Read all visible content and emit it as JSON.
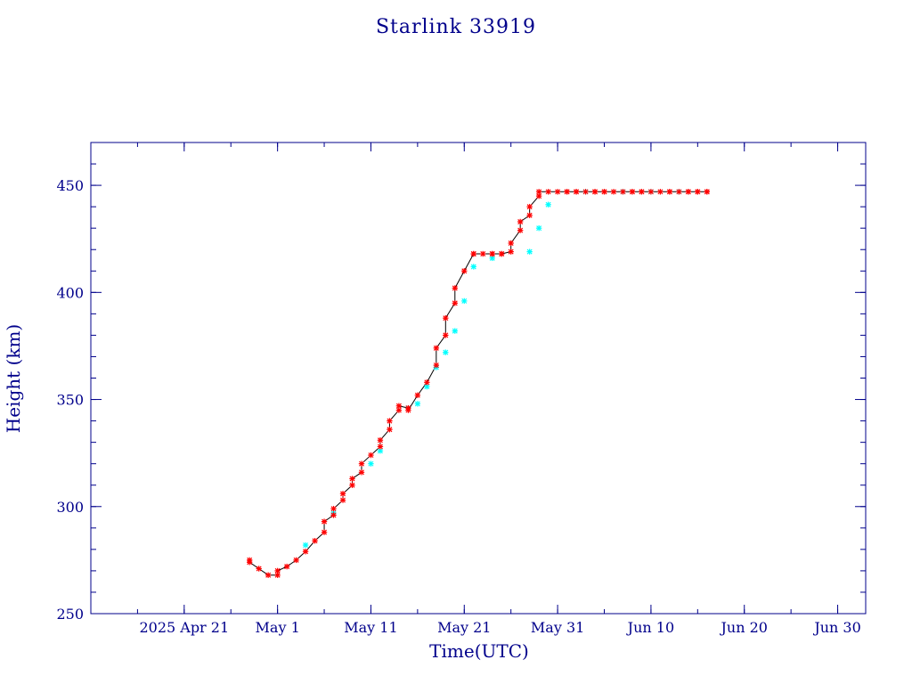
{
  "colors": {
    "axis": "#00008b",
    "line": "#000000",
    "marker_red": "#ff0000",
    "marker_cyan": "#00ffff",
    "background": "#ffffff"
  },
  "chart_data": {
    "type": "line",
    "title": "Starlink 33919",
    "xlabel": "Time(UTC)",
    "ylabel": "Height (km)",
    "x_unit": "days",
    "xlim": [
      "2025-04-11",
      "2025-07-03"
    ],
    "ylim": [
      250,
      470
    ],
    "grid": false,
    "x_tick_labels": [
      {
        "date": "2025-04-21",
        "label": "2025 Apr 21"
      },
      {
        "date": "2025-05-01",
        "label": "May  1"
      },
      {
        "date": "2025-05-11",
        "label": "May 11"
      },
      {
        "date": "2025-05-21",
        "label": "May 21"
      },
      {
        "date": "2025-05-31",
        "label": "May 31"
      },
      {
        "date": "2025-06-10",
        "label": "Jun 10"
      },
      {
        "date": "2025-06-20",
        "label": "Jun 20"
      },
      {
        "date": "2025-06-30",
        "label": "Jun 30"
      }
    ],
    "y_tick_labels": [
      "250",
      "300",
      "350",
      "400",
      "450"
    ],
    "y_tick_values": [
      250,
      300,
      350,
      400,
      450
    ],
    "series": [
      {
        "marker": "red-star",
        "x": [
          "2025-04-28",
          "2025-04-28",
          "2025-04-29",
          "2025-04-30",
          "2025-05-01",
          "2025-05-01",
          "2025-05-02",
          "2025-05-03",
          "2025-05-04",
          "2025-05-05",
          "2025-05-06",
          "2025-05-06",
          "2025-05-07",
          "2025-05-07",
          "2025-05-08",
          "2025-05-08",
          "2025-05-09",
          "2025-05-09",
          "2025-05-10",
          "2025-05-10",
          "2025-05-11",
          "2025-05-12",
          "2025-05-12",
          "2025-05-13",
          "2025-05-13",
          "2025-05-14",
          "2025-05-14",
          "2025-05-15",
          "2025-05-15",
          "2025-05-16",
          "2025-05-17",
          "2025-05-18",
          "2025-05-18",
          "2025-05-19",
          "2025-05-19",
          "2025-05-20",
          "2025-05-20",
          "2025-05-21",
          "2025-05-22",
          "2025-05-22",
          "2025-05-23",
          "2025-05-24",
          "2025-05-24",
          "2025-05-25",
          "2025-05-25",
          "2025-05-26",
          "2025-05-26",
          "2025-05-27",
          "2025-05-27",
          "2025-05-28",
          "2025-05-28",
          "2025-05-29",
          "2025-05-29",
          "2025-05-30",
          "2025-05-31",
          "2025-06-01",
          "2025-06-01",
          "2025-06-02",
          "2025-06-02",
          "2025-06-03",
          "2025-06-04",
          "2025-06-04",
          "2025-06-05",
          "2025-06-05",
          "2025-06-06",
          "2025-06-07",
          "2025-06-08",
          "2025-06-08",
          "2025-06-09",
          "2025-06-09",
          "2025-06-10",
          "2025-06-11",
          "2025-06-12",
          "2025-06-12",
          "2025-06-13",
          "2025-06-14",
          "2025-06-14",
          "2025-06-15",
          "2025-06-15",
          "2025-06-16",
          "2025-06-16"
        ],
        "y": [
          275,
          274,
          271,
          268,
          268,
          270,
          272,
          275,
          279,
          284,
          288,
          293,
          296,
          299,
          303,
          306,
          310,
          313,
          316,
          320,
          324,
          328,
          331,
          336,
          340,
          345,
          347,
          346,
          345,
          352,
          358,
          366,
          374,
          380,
          388,
          395,
          402,
          410,
          418,
          418,
          418,
          418,
          418,
          418,
          418,
          419,
          423,
          429,
          433,
          436,
          440,
          445,
          447,
          447,
          447,
          447,
          447,
          447,
          447,
          447,
          447,
          447,
          447,
          447,
          447,
          447,
          447,
          447,
          447,
          447,
          447,
          447,
          447,
          447,
          447,
          447,
          447,
          447,
          447,
          447,
          447
        ]
      },
      {
        "marker": "cyan-star",
        "x": [
          "2025-05-04",
          "2025-05-07",
          "2025-05-11",
          "2025-05-12",
          "2025-05-15",
          "2025-05-16",
          "2025-05-17",
          "2025-05-18",
          "2025-05-19",
          "2025-05-20",
          "2025-05-21",
          "2025-05-22",
          "2025-05-24",
          "2025-05-28",
          "2025-05-29",
          "2025-05-30",
          "2025-06-03",
          "2025-06-07",
          "2025-06-10",
          "2025-06-13"
        ],
        "y": [
          282,
          297,
          320,
          326,
          346,
          348,
          356,
          365,
          372,
          382,
          396,
          412,
          416,
          419,
          430,
          441,
          447,
          447,
          447,
          447
        ]
      }
    ]
  }
}
